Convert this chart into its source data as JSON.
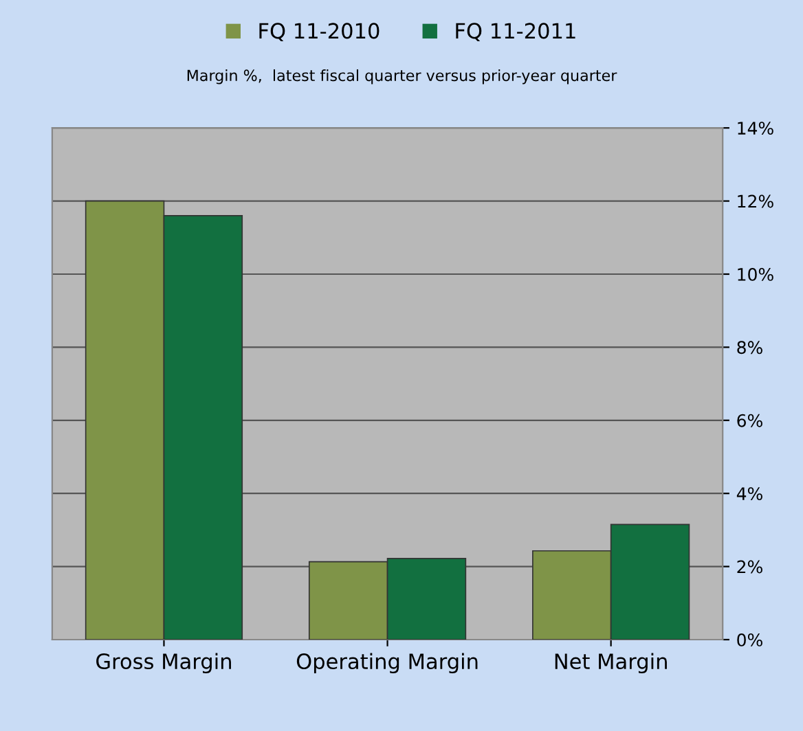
{
  "chart_data": {
    "type": "bar",
    "subtitle": "Margin %,  latest fiscal quarter versus prior-year quarter",
    "categories": [
      "Gross Margin",
      "Operating Margin",
      "Net Margin"
    ],
    "series": [
      {
        "name": "FQ 11-2010",
        "color": "#7f9448",
        "values": [
          12.0,
          2.13,
          2.43
        ]
      },
      {
        "name": "FQ 11-2011",
        "color": "#127040",
        "values": [
          11.6,
          2.22,
          3.15
        ]
      }
    ],
    "ylim": [
      0,
      14
    ],
    "yticks": [
      {
        "value": 0,
        "label": "0%"
      },
      {
        "value": 2,
        "label": "2%"
      },
      {
        "value": 4,
        "label": "4%"
      },
      {
        "value": 6,
        "label": "6%"
      },
      {
        "value": 8,
        "label": "8%"
      },
      {
        "value": 10,
        "label": "10%"
      },
      {
        "value": 12,
        "label": "12%"
      },
      {
        "value": 14,
        "label": "14%"
      }
    ],
    "grid": "y",
    "legend": "top"
  }
}
